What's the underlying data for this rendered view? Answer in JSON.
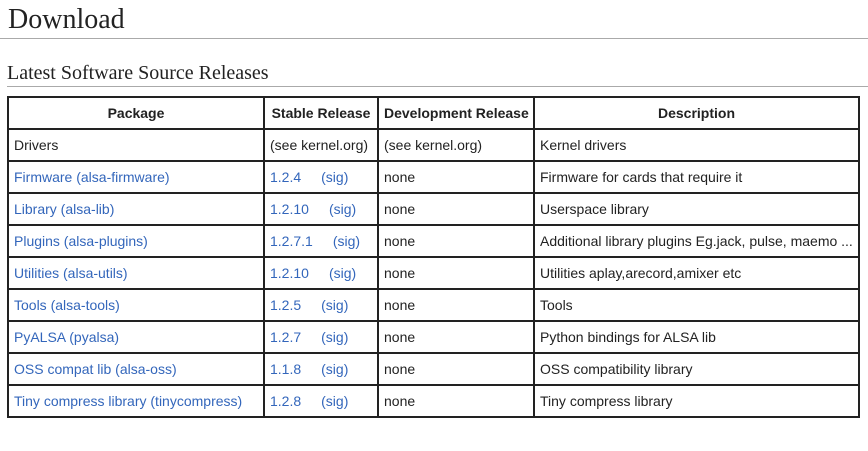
{
  "header": {
    "title": "Download"
  },
  "section": {
    "title": "Latest Software Source Releases"
  },
  "table": {
    "columns": [
      "Package",
      "Stable Release",
      "Development Release",
      "Description"
    ],
    "rows": [
      {
        "package": "Drivers",
        "stable": "(see kernel.org)",
        "development": "(see kernel.org)",
        "description": "Kernel drivers"
      },
      {
        "package": "Firmware (alsa-firmware)",
        "stable": "1.2.4",
        "sig": "(sig)",
        "development": "none",
        "description": "Firmware for cards that require it"
      },
      {
        "package": "Library (alsa-lib)",
        "stable": "1.2.10",
        "sig": "(sig)",
        "development": "none",
        "description": "Userspace library"
      },
      {
        "package": "Plugins (alsa-plugins)",
        "stable": "1.2.7.1",
        "sig": "(sig)",
        "development": "none",
        "description": "Additional library plugins Eg.jack, pulse, maemo ..."
      },
      {
        "package": "Utilities (alsa-utils)",
        "stable": "1.2.10",
        "sig": "(sig)",
        "development": "none",
        "description": "Utilities aplay,arecord,amixer etc"
      },
      {
        "package": "Tools (alsa-tools)",
        "stable": "1.2.5",
        "sig": "(sig)",
        "development": "none",
        "description": "Tools"
      },
      {
        "package": "PyALSA (pyalsa)",
        "stable": "1.2.7",
        "sig": "(sig)",
        "development": "none",
        "description": "Python bindings for ALSA lib"
      },
      {
        "package": "OSS compat lib (alsa-oss)",
        "stable": "1.1.8",
        "sig": "(sig)",
        "development": "none",
        "description": "OSS compatibility library"
      },
      {
        "package": "Tiny compress library (tinycompress)",
        "stable": "1.2.8",
        "sig": "(sig)",
        "development": "none",
        "description": "Tiny compress library"
      }
    ]
  }
}
